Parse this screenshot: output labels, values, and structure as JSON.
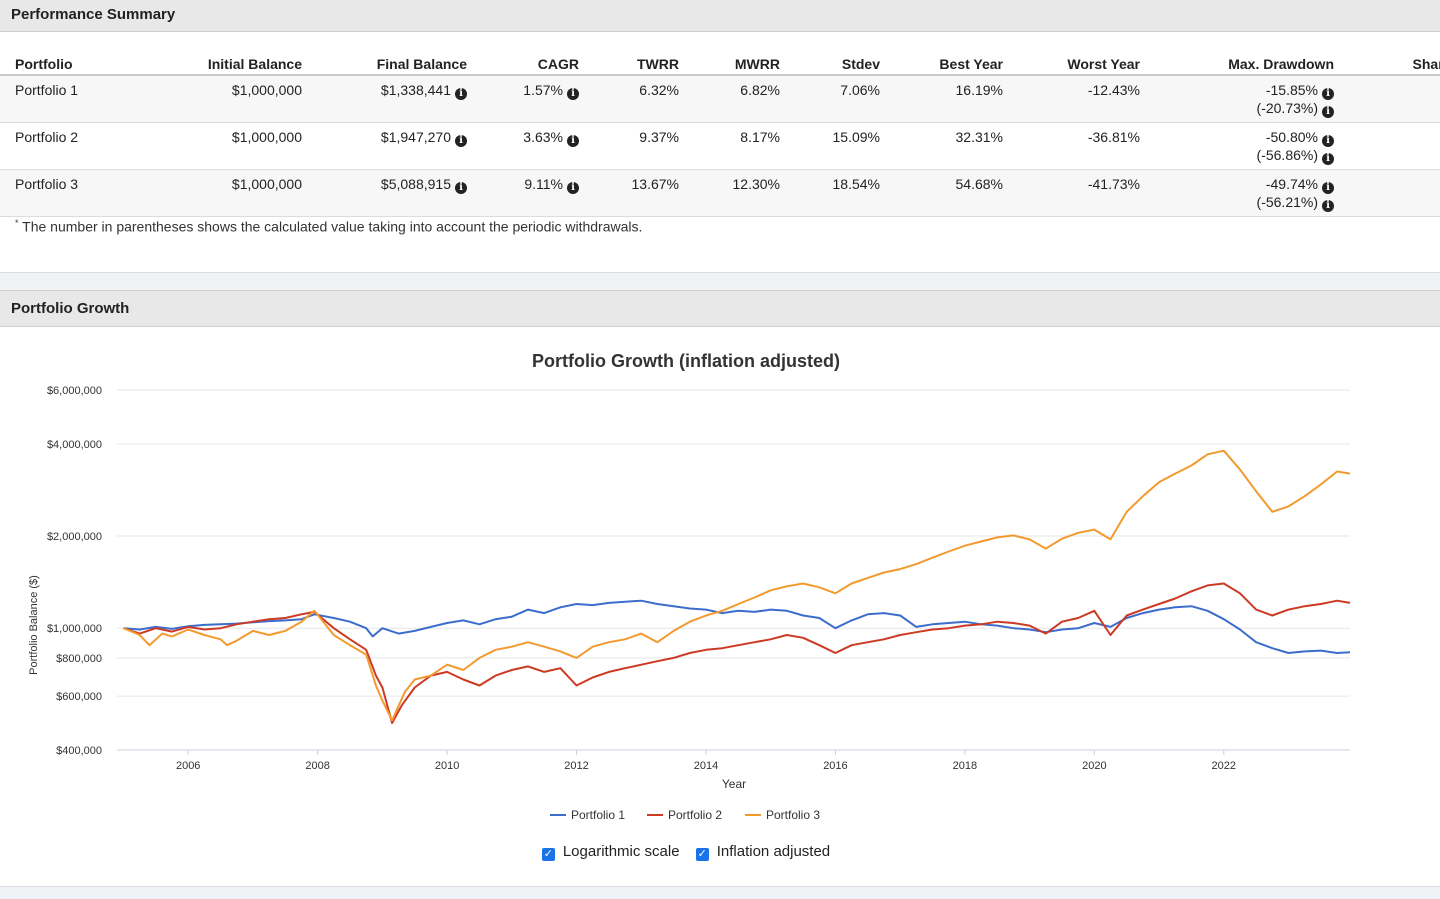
{
  "performance": {
    "title": "Performance Summary",
    "columns": [
      "Portfolio",
      "Initial Balance",
      "Final Balance",
      "CAGR",
      "TWRR",
      "MWRR",
      "Stdev",
      "Best Year",
      "Worst Year",
      "Max. Drawdown",
      "Sharpe"
    ],
    "rows": [
      {
        "name": "Portfolio 1",
        "initial": "$1,000,000",
        "final": "$1,338,441",
        "cagr": "1.57%",
        "twrr": "6.32%",
        "mwrr": "6.82%",
        "stdev": "7.06%",
        "best": "16.19%",
        "worst": "-12.43%",
        "drawdown": "-15.85%",
        "drawdown_w": "(-20.73%)"
      },
      {
        "name": "Portfolio 2",
        "initial": "$1,000,000",
        "final": "$1,947,270",
        "cagr": "3.63%",
        "twrr": "9.37%",
        "mwrr": "8.17%",
        "stdev": "15.09%",
        "best": "32.31%",
        "worst": "-36.81%",
        "drawdown": "-50.80%",
        "drawdown_w": "(-56.86%)"
      },
      {
        "name": "Portfolio 3",
        "initial": "$1,000,000",
        "final": "$5,088,915",
        "cagr": "9.11%",
        "twrr": "13.67%",
        "mwrr": "12.30%",
        "stdev": "18.54%",
        "best": "54.68%",
        "worst": "-41.73%",
        "drawdown": "-49.74%",
        "drawdown_w": "(-56.21%)"
      }
    ],
    "info_glyph": "i",
    "footnote_mark": "*",
    "footnote": "The number in parentheses shows the calculated value taking into account the periodic withdrawals."
  },
  "growth": {
    "title": "Portfolio Growth"
  },
  "controls": {
    "check_glyph": "✓",
    "log_label": "Logarithmic scale",
    "log_checked": true,
    "inflation_label": "Inflation adjusted",
    "inflation_checked": true
  },
  "chart_data": {
    "type": "line",
    "title": "Portfolio Growth (inflation adjusted)",
    "xlabel": "Year",
    "ylabel": "Portfolio Balance ($)",
    "yscale": "log",
    "ylim": [
      400000,
      6000000
    ],
    "xlim": [
      2004.9,
      2023.95
    ],
    "x_ticks": [
      2006,
      2008,
      2010,
      2012,
      2014,
      2016,
      2018,
      2020,
      2022
    ],
    "y_ticks": [
      {
        "value": 400000,
        "label": "$400,000"
      },
      {
        "value": 600000,
        "label": "$600,000"
      },
      {
        "value": 800000,
        "label": "$800,000"
      },
      {
        "value": 1000000,
        "label": "$1,000,000"
      },
      {
        "value": 2000000,
        "label": "$2,000,000"
      },
      {
        "value": 4000000,
        "label": "$4,000,000"
      },
      {
        "value": 6000000,
        "label": "$6,000,000"
      }
    ],
    "grid": true,
    "legend_position": "bottom",
    "series": [
      {
        "name": "Portfolio 1",
        "color": "#3d6dcc",
        "points": [
          [
            2005.0,
            1000000
          ],
          [
            2005.25,
            990000
          ],
          [
            2005.5,
            1010000
          ],
          [
            2005.75,
            995000
          ],
          [
            2006.0,
            1015000
          ],
          [
            2006.25,
            1025000
          ],
          [
            2006.5,
            1030000
          ],
          [
            2006.75,
            1035000
          ],
          [
            2007.0,
            1045000
          ],
          [
            2007.25,
            1055000
          ],
          [
            2007.5,
            1060000
          ],
          [
            2007.75,
            1070000
          ],
          [
            2007.95,
            1110000
          ],
          [
            2008.25,
            1080000
          ],
          [
            2008.5,
            1050000
          ],
          [
            2008.75,
            1000000
          ],
          [
            2008.85,
            940000
          ],
          [
            2009.0,
            1000000
          ],
          [
            2009.25,
            960000
          ],
          [
            2009.5,
            980000
          ],
          [
            2009.75,
            1010000
          ],
          [
            2010.0,
            1040000
          ],
          [
            2010.25,
            1060000
          ],
          [
            2010.5,
            1030000
          ],
          [
            2010.75,
            1070000
          ],
          [
            2011.0,
            1090000
          ],
          [
            2011.25,
            1150000
          ],
          [
            2011.5,
            1120000
          ],
          [
            2011.75,
            1170000
          ],
          [
            2012.0,
            1200000
          ],
          [
            2012.25,
            1190000
          ],
          [
            2012.5,
            1210000
          ],
          [
            2012.75,
            1220000
          ],
          [
            2013.0,
            1230000
          ],
          [
            2013.25,
            1200000
          ],
          [
            2013.5,
            1180000
          ],
          [
            2013.75,
            1160000
          ],
          [
            2014.0,
            1150000
          ],
          [
            2014.25,
            1120000
          ],
          [
            2014.5,
            1140000
          ],
          [
            2014.75,
            1130000
          ],
          [
            2015.0,
            1150000
          ],
          [
            2015.25,
            1140000
          ],
          [
            2015.5,
            1100000
          ],
          [
            2015.75,
            1080000
          ],
          [
            2016.0,
            1000000
          ],
          [
            2016.25,
            1060000
          ],
          [
            2016.5,
            1110000
          ],
          [
            2016.75,
            1120000
          ],
          [
            2017.0,
            1100000
          ],
          [
            2017.25,
            1010000
          ],
          [
            2017.5,
            1030000
          ],
          [
            2017.75,
            1040000
          ],
          [
            2018.0,
            1050000
          ],
          [
            2018.25,
            1030000
          ],
          [
            2018.5,
            1020000
          ],
          [
            2018.75,
            1000000
          ],
          [
            2019.0,
            990000
          ],
          [
            2019.25,
            970000
          ],
          [
            2019.5,
            990000
          ],
          [
            2019.75,
            1000000
          ],
          [
            2020.0,
            1040000
          ],
          [
            2020.25,
            1010000
          ],
          [
            2020.5,
            1080000
          ],
          [
            2020.75,
            1120000
          ],
          [
            2021.0,
            1150000
          ],
          [
            2021.25,
            1170000
          ],
          [
            2021.5,
            1180000
          ],
          [
            2021.75,
            1140000
          ],
          [
            2022.0,
            1070000
          ],
          [
            2022.25,
            990000
          ],
          [
            2022.5,
            900000
          ],
          [
            2022.75,
            860000
          ],
          [
            2023.0,
            830000
          ],
          [
            2023.25,
            840000
          ],
          [
            2023.5,
            845000
          ],
          [
            2023.75,
            830000
          ],
          [
            2023.95,
            835000
          ]
        ]
      },
      {
        "name": "Portfolio 2",
        "color": "#cc3a24",
        "points": [
          [
            2005.0,
            1000000
          ],
          [
            2005.25,
            960000
          ],
          [
            2005.5,
            1000000
          ],
          [
            2005.75,
            975000
          ],
          [
            2006.0,
            1010000
          ],
          [
            2006.25,
            990000
          ],
          [
            2006.5,
            1000000
          ],
          [
            2006.75,
            1030000
          ],
          [
            2007.0,
            1050000
          ],
          [
            2007.25,
            1070000
          ],
          [
            2007.5,
            1080000
          ],
          [
            2007.75,
            1110000
          ],
          [
            2007.95,
            1130000
          ],
          [
            2008.25,
            1000000
          ],
          [
            2008.5,
            920000
          ],
          [
            2008.75,
            850000
          ],
          [
            2008.9,
            700000
          ],
          [
            2009.0,
            640000
          ],
          [
            2009.15,
            490000
          ],
          [
            2009.3,
            560000
          ],
          [
            2009.5,
            640000
          ],
          [
            2009.75,
            700000
          ],
          [
            2010.0,
            720000
          ],
          [
            2010.25,
            680000
          ],
          [
            2010.5,
            650000
          ],
          [
            2010.75,
            700000
          ],
          [
            2011.0,
            730000
          ],
          [
            2011.25,
            750000
          ],
          [
            2011.5,
            720000
          ],
          [
            2011.75,
            740000
          ],
          [
            2012.0,
            650000
          ],
          [
            2012.25,
            690000
          ],
          [
            2012.5,
            720000
          ],
          [
            2012.75,
            740000
          ],
          [
            2013.0,
            760000
          ],
          [
            2013.25,
            780000
          ],
          [
            2013.5,
            800000
          ],
          [
            2013.75,
            830000
          ],
          [
            2014.0,
            850000
          ],
          [
            2014.25,
            860000
          ],
          [
            2014.5,
            880000
          ],
          [
            2014.75,
            900000
          ],
          [
            2015.0,
            920000
          ],
          [
            2015.25,
            950000
          ],
          [
            2015.5,
            930000
          ],
          [
            2015.75,
            880000
          ],
          [
            2016.0,
            830000
          ],
          [
            2016.25,
            880000
          ],
          [
            2016.5,
            900000
          ],
          [
            2016.75,
            920000
          ],
          [
            2017.0,
            950000
          ],
          [
            2017.25,
            970000
          ],
          [
            2017.5,
            990000
          ],
          [
            2017.75,
            1000000
          ],
          [
            2018.0,
            1020000
          ],
          [
            2018.25,
            1030000
          ],
          [
            2018.5,
            1050000
          ],
          [
            2018.75,
            1040000
          ],
          [
            2019.0,
            1020000
          ],
          [
            2019.25,
            960000
          ],
          [
            2019.5,
            1050000
          ],
          [
            2019.75,
            1080000
          ],
          [
            2020.0,
            1140000
          ],
          [
            2020.25,
            950000
          ],
          [
            2020.5,
            1100000
          ],
          [
            2020.75,
            1150000
          ],
          [
            2021.0,
            1200000
          ],
          [
            2021.25,
            1250000
          ],
          [
            2021.5,
            1320000
          ],
          [
            2021.75,
            1380000
          ],
          [
            2022.0,
            1400000
          ],
          [
            2022.25,
            1300000
          ],
          [
            2022.5,
            1150000
          ],
          [
            2022.75,
            1100000
          ],
          [
            2023.0,
            1150000
          ],
          [
            2023.25,
            1180000
          ],
          [
            2023.5,
            1200000
          ],
          [
            2023.75,
            1230000
          ],
          [
            2023.95,
            1210000
          ]
        ]
      },
      {
        "name": "Portfolio 3",
        "color": "#f29a2e",
        "points": [
          [
            2005.0,
            1000000
          ],
          [
            2005.25,
            950000
          ],
          [
            2005.4,
            880000
          ],
          [
            2005.6,
            960000
          ],
          [
            2005.75,
            940000
          ],
          [
            2006.0,
            990000
          ],
          [
            2006.25,
            950000
          ],
          [
            2006.5,
            920000
          ],
          [
            2006.6,
            880000
          ],
          [
            2006.75,
            910000
          ],
          [
            2007.0,
            980000
          ],
          [
            2007.25,
            950000
          ],
          [
            2007.5,
            980000
          ],
          [
            2007.75,
            1050000
          ],
          [
            2007.95,
            1140000
          ],
          [
            2008.25,
            950000
          ],
          [
            2008.5,
            880000
          ],
          [
            2008.75,
            820000
          ],
          [
            2008.9,
            650000
          ],
          [
            2009.0,
            580000
          ],
          [
            2009.15,
            500000
          ],
          [
            2009.35,
            620000
          ],
          [
            2009.5,
            680000
          ],
          [
            2009.75,
            700000
          ],
          [
            2010.0,
            760000
          ],
          [
            2010.25,
            730000
          ],
          [
            2010.5,
            800000
          ],
          [
            2010.75,
            850000
          ],
          [
            2011.0,
            870000
          ],
          [
            2011.25,
            900000
          ],
          [
            2011.5,
            870000
          ],
          [
            2011.75,
            840000
          ],
          [
            2012.0,
            800000
          ],
          [
            2012.25,
            870000
          ],
          [
            2012.5,
            900000
          ],
          [
            2012.75,
            920000
          ],
          [
            2013.0,
            960000
          ],
          [
            2013.25,
            900000
          ],
          [
            2013.5,
            980000
          ],
          [
            2013.75,
            1050000
          ],
          [
            2014.0,
            1100000
          ],
          [
            2014.25,
            1140000
          ],
          [
            2014.5,
            1200000
          ],
          [
            2014.75,
            1260000
          ],
          [
            2015.0,
            1330000
          ],
          [
            2015.25,
            1370000
          ],
          [
            2015.5,
            1400000
          ],
          [
            2015.75,
            1360000
          ],
          [
            2016.0,
            1300000
          ],
          [
            2016.25,
            1400000
          ],
          [
            2016.5,
            1460000
          ],
          [
            2016.75,
            1520000
          ],
          [
            2017.0,
            1560000
          ],
          [
            2017.25,
            1620000
          ],
          [
            2017.5,
            1700000
          ],
          [
            2017.75,
            1780000
          ],
          [
            2018.0,
            1860000
          ],
          [
            2018.25,
            1920000
          ],
          [
            2018.5,
            1980000
          ],
          [
            2018.75,
            2010000
          ],
          [
            2019.0,
            1950000
          ],
          [
            2019.25,
            1820000
          ],
          [
            2019.5,
            1960000
          ],
          [
            2019.75,
            2050000
          ],
          [
            2020.0,
            2100000
          ],
          [
            2020.25,
            1950000
          ],
          [
            2020.5,
            2400000
          ],
          [
            2020.75,
            2700000
          ],
          [
            2021.0,
            3000000
          ],
          [
            2021.25,
            3200000
          ],
          [
            2021.5,
            3400000
          ],
          [
            2021.75,
            3700000
          ],
          [
            2022.0,
            3800000
          ],
          [
            2022.25,
            3300000
          ],
          [
            2022.5,
            2800000
          ],
          [
            2022.75,
            2400000
          ],
          [
            2023.0,
            2500000
          ],
          [
            2023.25,
            2700000
          ],
          [
            2023.5,
            2950000
          ],
          [
            2023.75,
            3250000
          ],
          [
            2023.95,
            3200000
          ]
        ]
      }
    ]
  }
}
